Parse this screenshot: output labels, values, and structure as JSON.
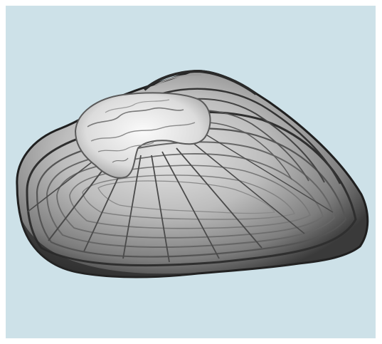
{
  "image": {
    "subject": "shell-illustration",
    "colors": {
      "background": "#cde1e8",
      "frame": "#ffffff",
      "shell_dark": "#2a2a2a",
      "shell_mid": "#6f6f6f",
      "shell_light": "#d8d8d8",
      "umbo": "#f2f2f2"
    }
  }
}
